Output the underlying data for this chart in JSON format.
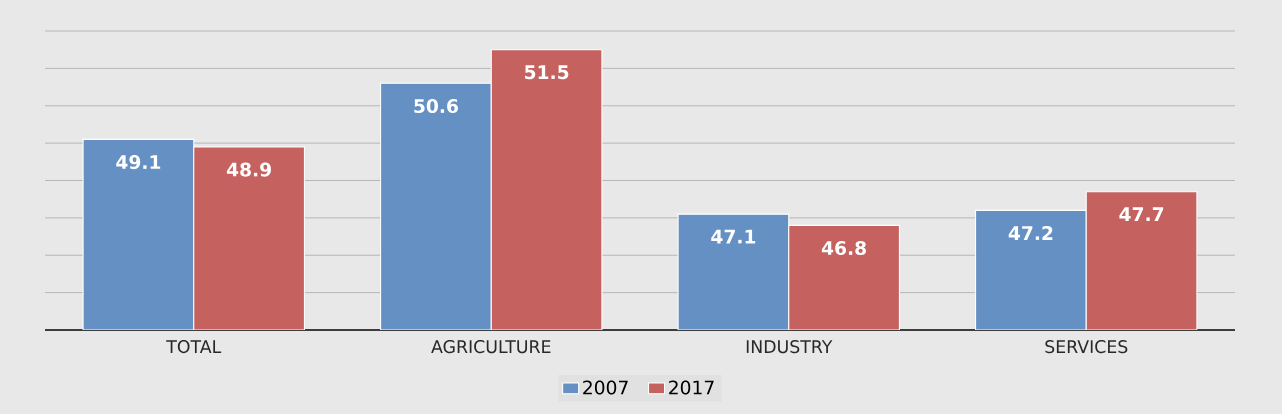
{
  "chart_data": {
    "type": "bar",
    "categories": [
      "TOTAL",
      "AGRICULTURE",
      "INDUSTRY",
      "SERVICES"
    ],
    "series": [
      {
        "name": "2007",
        "color": "#6490c4",
        "values": [
          49.1,
          50.6,
          47.1,
          47.2
        ]
      },
      {
        "name": "2017",
        "color": "#c5625f",
        "values": [
          48.9,
          51.5,
          46.8,
          47.7
        ]
      }
    ],
    "ylim": [
      44,
      52
    ],
    "yticks": [
      44,
      45,
      46,
      47,
      48,
      49,
      50,
      51,
      52
    ],
    "tick_labels": "x",
    "grid": "y",
    "legend": "bottom",
    "data_labels": true
  }
}
